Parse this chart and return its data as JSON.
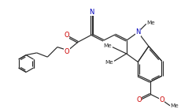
{
  "bg": "#ffffff",
  "bc": "#2a2a2a",
  "nc": "#0000bb",
  "oc": "#cc0000",
  "ac": "#2a2a2a",
  "lw": 0.85,
  "dbo": 0.042,
  "fs": 6.0,
  "fss": 5.2,
  "xlim": [
    -0.5,
    10.5
  ],
  "ylim": [
    -0.3,
    6.3
  ]
}
